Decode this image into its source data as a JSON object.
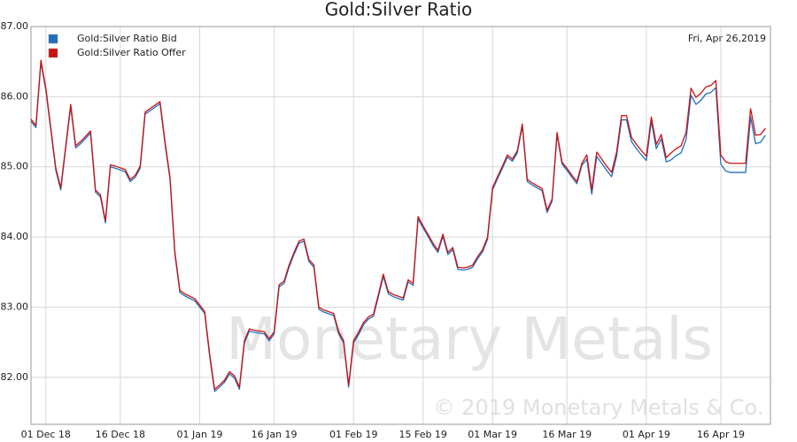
{
  "chart_data": {
    "type": "line",
    "title": "Gold:Silver Ratio",
    "annotation": "Fri, Apr 26,2019",
    "watermark": [
      "Monetary Metals",
      "© 2019 Monetary Metals & Co."
    ],
    "legend": "upper left",
    "grid": true,
    "x": [
      "2018-11-28",
      "2018-11-29",
      "2018-11-30",
      "2018-12-01",
      "2018-12-02",
      "2018-12-03",
      "2018-12-04",
      "2018-12-05",
      "2018-12-06",
      "2018-12-07",
      "2018-12-08",
      "2018-12-10",
      "2018-12-11",
      "2018-12-12",
      "2018-12-13",
      "2018-12-14",
      "2018-12-15",
      "2018-12-17",
      "2018-12-18",
      "2018-12-19",
      "2018-12-20",
      "2018-12-21",
      "2018-12-22",
      "2018-12-24",
      "2018-12-25",
      "2018-12-26",
      "2018-12-27",
      "2018-12-28",
      "2018-12-29",
      "2018-12-31",
      "2019-01-01",
      "2019-01-02",
      "2019-01-03",
      "2019-01-04",
      "2019-01-05",
      "2019-01-06",
      "2019-01-07",
      "2019-01-08",
      "2019-01-09",
      "2019-01-10",
      "2019-01-11",
      "2019-01-12",
      "2019-01-14",
      "2019-01-15",
      "2019-01-16",
      "2019-01-17",
      "2019-01-18",
      "2019-01-19",
      "2019-01-20",
      "2019-01-21",
      "2019-01-22",
      "2019-01-23",
      "2019-01-24",
      "2019-01-25",
      "2019-01-26",
      "2019-01-28",
      "2019-01-29",
      "2019-01-30",
      "2019-01-31",
      "2019-02-01",
      "2019-02-02",
      "2019-02-03",
      "2019-02-04",
      "2019-02-05",
      "2019-02-06",
      "2019-02-07",
      "2019-02-08",
      "2019-02-09",
      "2019-02-11",
      "2019-02-12",
      "2019-02-13",
      "2019-02-14",
      "2019-02-15",
      "2019-02-16",
      "2019-02-17",
      "2019-02-18",
      "2019-02-19",
      "2019-02-20",
      "2019-02-21",
      "2019-02-22",
      "2019-02-23",
      "2019-02-24",
      "2019-02-25",
      "2019-02-26",
      "2019-02-27",
      "2019-02-28",
      "2019-03-01",
      "2019-03-02",
      "2019-03-03",
      "2019-03-04",
      "2019-03-05",
      "2019-03-06",
      "2019-03-07",
      "2019-03-08",
      "2019-03-09",
      "2019-03-10",
      "2019-03-11",
      "2019-03-12",
      "2019-03-13",
      "2019-03-14",
      "2019-03-15",
      "2019-03-16",
      "2019-03-17",
      "2019-03-18",
      "2019-03-19",
      "2019-03-20",
      "2019-03-21",
      "2019-03-22",
      "2019-03-23",
      "2019-03-24",
      "2019-03-25",
      "2019-03-26",
      "2019-03-27",
      "2019-03-28",
      "2019-03-29",
      "2019-03-30",
      "2019-03-31",
      "2019-04-01",
      "2019-04-02",
      "2019-04-03",
      "2019-04-04",
      "2019-04-05",
      "2019-04-06",
      "2019-04-07",
      "2019-04-08",
      "2019-04-09",
      "2019-04-10",
      "2019-04-11",
      "2019-04-12",
      "2019-04-13",
      "2019-04-14",
      "2019-04-15",
      "2019-04-16",
      "2019-04-17",
      "2019-04-18",
      "2019-04-21",
      "2019-04-22",
      "2019-04-23",
      "2019-04-24",
      "2019-04-25"
    ],
    "series": [
      {
        "name": "Gold:Silver Ratio Bid",
        "color": "#1f6fbf",
        "values": [
          85.65,
          85.56,
          86.49,
          86.09,
          85.52,
          84.95,
          84.67,
          85.27,
          85.86,
          85.27,
          85.33,
          85.48,
          84.64,
          84.57,
          84.2,
          85.0,
          84.98,
          84.93,
          84.79,
          84.85,
          84.98,
          85.75,
          85.8,
          85.9,
          85.33,
          84.83,
          83.75,
          83.21,
          83.16,
          83.09,
          83.0,
          82.91,
          82.3,
          81.8,
          81.86,
          81.93,
          82.05,
          81.99,
          81.83,
          82.49,
          82.66,
          82.64,
          82.62,
          82.52,
          82.62,
          83.29,
          83.34,
          83.57,
          83.75,
          83.91,
          83.94,
          83.65,
          83.57,
          82.97,
          82.93,
          82.88,
          82.62,
          82.49,
          81.86,
          82.49,
          82.61,
          82.75,
          82.83,
          82.87,
          83.15,
          83.44,
          83.19,
          83.15,
          83.1,
          83.36,
          83.31,
          84.26,
          84.13,
          84.01,
          83.88,
          83.78,
          84.01,
          83.75,
          83.82,
          83.54,
          83.53,
          83.54,
          83.57,
          83.69,
          83.79,
          83.97,
          84.67,
          84.83,
          84.98,
          85.14,
          85.08,
          85.2,
          85.58,
          84.79,
          84.74,
          84.7,
          84.66,
          84.35,
          84.51,
          85.46,
          85.04,
          84.95,
          84.85,
          84.76,
          85.02,
          85.11,
          84.61,
          85.15,
          85.05,
          84.95,
          84.86,
          85.15,
          85.67,
          85.67,
          85.36,
          85.26,
          85.17,
          85.09,
          85.65,
          85.26,
          85.4,
          85.07,
          85.1,
          85.16,
          85.2,
          85.39,
          86.02,
          85.89,
          85.95,
          86.04,
          86.06,
          86.13,
          85.04,
          84.94,
          84.92,
          84.92,
          85.71,
          85.33,
          85.35,
          85.45
        ]
      },
      {
        "name": "Gold:Silver Ratio Offer",
        "color": "#cc1111",
        "values": [
          85.68,
          85.59,
          86.52,
          86.12,
          85.55,
          84.98,
          84.7,
          85.3,
          85.89,
          85.3,
          85.36,
          85.51,
          84.67,
          84.6,
          84.23,
          85.03,
          85.01,
          84.96,
          84.82,
          84.88,
          85.01,
          85.78,
          85.83,
          85.93,
          85.36,
          84.86,
          83.78,
          83.24,
          83.19,
          83.12,
          83.03,
          82.94,
          82.33,
          81.83,
          81.89,
          81.96,
          82.08,
          82.02,
          81.86,
          82.52,
          82.69,
          82.67,
          82.65,
          82.55,
          82.65,
          83.32,
          83.37,
          83.6,
          83.78,
          83.94,
          83.97,
          83.68,
          83.6,
          83.0,
          82.96,
          82.91,
          82.65,
          82.52,
          81.89,
          82.52,
          82.64,
          82.78,
          82.86,
          82.9,
          83.18,
          83.47,
          83.22,
          83.18,
          83.13,
          83.39,
          83.34,
          84.29,
          84.16,
          84.04,
          83.91,
          83.81,
          84.04,
          83.78,
          83.85,
          83.57,
          83.56,
          83.57,
          83.6,
          83.72,
          83.82,
          84.0,
          84.7,
          84.86,
          85.01,
          85.17,
          85.11,
          85.23,
          85.61,
          84.82,
          84.77,
          84.73,
          84.69,
          84.38,
          84.54,
          85.49,
          85.07,
          84.98,
          84.88,
          84.79,
          85.05,
          85.17,
          84.67,
          85.21,
          85.11,
          85.01,
          84.92,
          85.21,
          85.73,
          85.73,
          85.42,
          85.32,
          85.23,
          85.15,
          85.71,
          85.32,
          85.46,
          85.13,
          85.2,
          85.26,
          85.3,
          85.49,
          86.12,
          85.99,
          86.05,
          86.14,
          86.16,
          86.23,
          85.17,
          85.07,
          85.05,
          85.05,
          85.83,
          85.45,
          85.46,
          85.55
        ]
      }
    ],
    "xlim": [
      "2018-11-28",
      "2019-04-26"
    ],
    "xticks": [
      {
        "value": "2018-12-01",
        "label": "01 Dec 18"
      },
      {
        "value": "2018-12-16",
        "label": "16 Dec 18"
      },
      {
        "value": "2019-01-01",
        "label": "01 Jan 19"
      },
      {
        "value": "2019-01-16",
        "label": "16 Jan 19"
      },
      {
        "value": "2019-02-01",
        "label": "01 Feb 19"
      },
      {
        "value": "2019-02-15",
        "label": "15 Feb 19"
      },
      {
        "value": "2019-03-01",
        "label": "01 Mar 19"
      },
      {
        "value": "2019-03-16",
        "label": "16 Mar 19"
      },
      {
        "value": "2019-04-01",
        "label": "01 Apr 19"
      },
      {
        "value": "2019-04-16",
        "label": "16 Apr 19"
      }
    ],
    "ylim": [
      81.33,
      87
    ],
    "yticks": [
      {
        "value": 82,
        "label": "82.00"
      },
      {
        "value": 83,
        "label": "83.00"
      },
      {
        "value": 84,
        "label": "84.00"
      },
      {
        "value": 85,
        "label": "85.00"
      },
      {
        "value": 86,
        "label": "86.00"
      },
      {
        "value": 87,
        "label": "87.00"
      }
    ]
  }
}
